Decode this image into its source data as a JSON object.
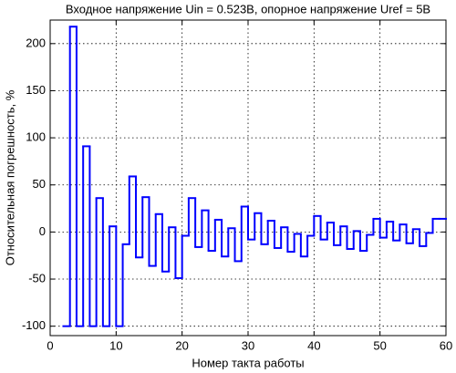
{
  "chart_data": {
    "type": "stairs",
    "title": "Входное напряжение Uin = 0.523В, опорное напряжение Uref = 5В",
    "x_label": "Номер такта работы",
    "y_label": "Относительная погрешность, %",
    "x": [
      2,
      3,
      4,
      5,
      6,
      7,
      8,
      9,
      10,
      11,
      12,
      13,
      14,
      15,
      16,
      17,
      18,
      19,
      20,
      21,
      22,
      23,
      24,
      25,
      26,
      27,
      28,
      29,
      30,
      31,
      32,
      33,
      34,
      35,
      36,
      37,
      38,
      39,
      40,
      41,
      42,
      43,
      44,
      45,
      46,
      47,
      48,
      49,
      50,
      51,
      52,
      53,
      54,
      55,
      56,
      57,
      58,
      59
    ],
    "values": [
      -100,
      218,
      -100,
      91,
      -100,
      36,
      -100,
      6,
      -100,
      -13,
      59,
      -27,
      37,
      -36,
      19,
      -42,
      5,
      -49,
      -4,
      36,
      -16,
      23,
      -20,
      13,
      -26,
      4,
      -31,
      27,
      -8,
      20,
      -13,
      12,
      -17,
      5,
      -21,
      -2,
      -26,
      -4,
      17,
      -8,
      10,
      -14,
      6,
      -18,
      1,
      -20,
      -3,
      14,
      -6,
      11,
      -9,
      8,
      -12,
      3,
      -15,
      -1,
      14,
      14
    ],
    "color": "#0000ff",
    "xlim": [
      0,
      60
    ],
    "xticks": [
      0,
      10,
      20,
      30,
      40,
      50,
      60
    ],
    "ylim": [
      -110,
      225
    ],
    "yticks": [
      -100,
      -50,
      0,
      50,
      100,
      150,
      200
    ],
    "grid": true
  }
}
